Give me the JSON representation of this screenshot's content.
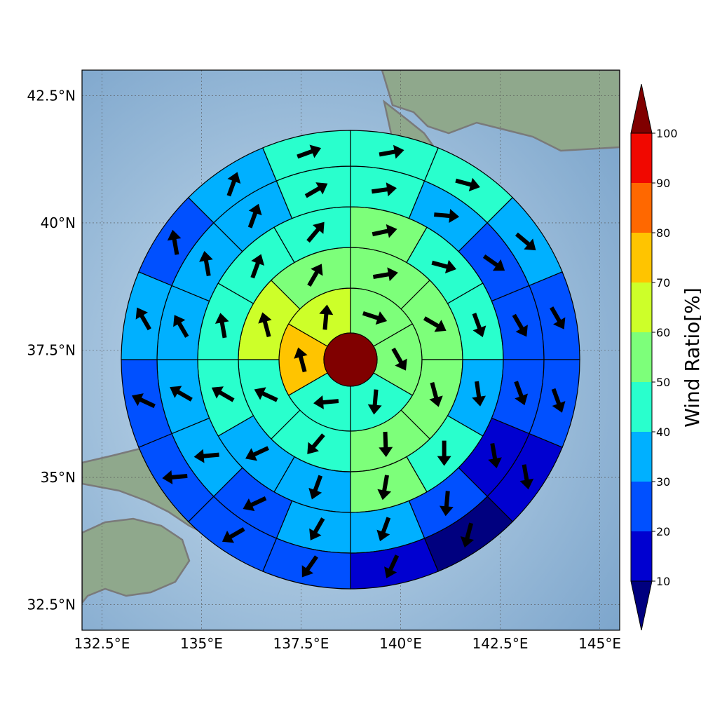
{
  "map": {
    "lon_ticks": [
      "132.5°E",
      "135°E",
      "137.5°E",
      "140°E",
      "142.5°E",
      "145°E"
    ],
    "lat_ticks": [
      "42.5°N",
      "40°N",
      "37.5°N",
      "35°N",
      "32.5°N"
    ],
    "lon_values": [
      132.5,
      135,
      137.5,
      140,
      142.5,
      145
    ],
    "lat_values": [
      42.5,
      40,
      37.5,
      35,
      32.5
    ],
    "lon_range": [
      132.0,
      145.5
    ],
    "lat_range": [
      32.0,
      43.0
    ],
    "grid": true,
    "land_color": "#8fa88c",
    "coastline_color": "#7a7a7a",
    "center_color": "#800000"
  },
  "colorbar": {
    "title": "Wind Ratio[%]",
    "tick_labels": [
      "10",
      "20",
      "30",
      "40",
      "50",
      "60",
      "70",
      "80",
      "90",
      "100"
    ],
    "levels": [
      10,
      20,
      30,
      40,
      50,
      60,
      70,
      80,
      90,
      100
    ],
    "colors": [
      "#0000d0",
      "#0050ff",
      "#00b0ff",
      "#29ffcd",
      "#7dff7a",
      "#cdff29",
      "#ffc400",
      "#ff6800",
      "#f10800"
    ],
    "under_color": "#00007f",
    "over_color": "#800000",
    "extend": "both"
  },
  "chart_data": {
    "type": "heatmap",
    "description_units": "polar sectors, ring 1 = innermost; sector values in Wind Ratio [%]; arrows give wind direction in degrees (0 = north, clockwise, direction arrow points to)",
    "center": {
      "value": 100
    },
    "rings": [
      {
        "ring": 1,
        "sectors": [
          {
            "angle": 30,
            "value": 55,
            "arrow": 108
          },
          {
            "angle": 90,
            "value": 55,
            "arrow": 150
          },
          {
            "angle": 150,
            "value": 45,
            "arrow": 185
          },
          {
            "angle": 210,
            "value": 45,
            "arrow": 265
          },
          {
            "angle": 270,
            "value": 75,
            "arrow": 345
          },
          {
            "angle": 330,
            "value": 65,
            "arrow": 5
          }
        ]
      },
      {
        "ring": 2,
        "sectors": [
          {
            "angle": 22.5,
            "value": 55,
            "arrow": 80
          },
          {
            "angle": 67.5,
            "value": 55,
            "arrow": 120
          },
          {
            "angle": 112.5,
            "value": 55,
            "arrow": 165
          },
          {
            "angle": 157.5,
            "value": 55,
            "arrow": 178
          },
          {
            "angle": 202.5,
            "value": 45,
            "arrow": 220
          },
          {
            "angle": 247.5,
            "value": 45,
            "arrow": 295
          },
          {
            "angle": 292.5,
            "value": 65,
            "arrow": 345
          },
          {
            "angle": 337.5,
            "value": 55,
            "arrow": 30
          }
        ]
      },
      {
        "ring": 3,
        "sectors": [
          {
            "angle": 15,
            "value": 55,
            "arrow": 78
          },
          {
            "angle": 45,
            "value": 45,
            "arrow": 105
          },
          {
            "angle": 75,
            "value": 45,
            "arrow": 160
          },
          {
            "angle": 105,
            "value": 35,
            "arrow": 172
          },
          {
            "angle": 135,
            "value": 45,
            "arrow": 180
          },
          {
            "angle": 165,
            "value": 55,
            "arrow": 190
          },
          {
            "angle": 195,
            "value": 35,
            "arrow": 200
          },
          {
            "angle": 225,
            "value": 35,
            "arrow": 245
          },
          {
            "angle": 255,
            "value": 45,
            "arrow": 300
          },
          {
            "angle": 285,
            "value": 45,
            "arrow": 350
          },
          {
            "angle": 315,
            "value": 45,
            "arrow": 20
          },
          {
            "angle": 345,
            "value": 45,
            "arrow": 40
          }
        ]
      },
      {
        "ring": 4,
        "sectors": [
          {
            "angle": 11.25,
            "value": 45,
            "arrow": 82
          },
          {
            "angle": 33.75,
            "value": 35,
            "arrow": 95
          },
          {
            "angle": 56.25,
            "value": 25,
            "arrow": 125
          },
          {
            "angle": 78.75,
            "value": 25,
            "arrow": 150
          },
          {
            "angle": 101.25,
            "value": 25,
            "arrow": 160
          },
          {
            "angle": 123.75,
            "value": 15,
            "arrow": 170
          },
          {
            "angle": 146.25,
            "value": 25,
            "arrow": 185
          },
          {
            "angle": 168.75,
            "value": 35,
            "arrow": 200
          },
          {
            "angle": 191.25,
            "value": 35,
            "arrow": 210
          },
          {
            "angle": 213.75,
            "value": 25,
            "arrow": 245
          },
          {
            "angle": 236.25,
            "value": 35,
            "arrow": 265
          },
          {
            "angle": 258.75,
            "value": 35,
            "arrow": 300
          },
          {
            "angle": 281.25,
            "value": 35,
            "arrow": 330
          },
          {
            "angle": 303.75,
            "value": 35,
            "arrow": 350
          },
          {
            "angle": 326.25,
            "value": 35,
            "arrow": 20
          },
          {
            "angle": 348.75,
            "value": 45,
            "arrow": 60
          }
        ]
      },
      {
        "ring": 5,
        "sectors": [
          {
            "angle": 11.25,
            "value": 45,
            "arrow": 80
          },
          {
            "angle": 33.75,
            "value": 45,
            "arrow": 105
          },
          {
            "angle": 56.25,
            "value": 35,
            "arrow": 130
          },
          {
            "angle": 78.75,
            "value": 25,
            "arrow": 150
          },
          {
            "angle": 101.25,
            "value": 25,
            "arrow": 160
          },
          {
            "angle": 123.75,
            "value": 15,
            "arrow": 170
          },
          {
            "angle": 146.25,
            "value": 5,
            "arrow": 195
          },
          {
            "angle": 168.75,
            "value": 15,
            "arrow": 205
          },
          {
            "angle": 191.25,
            "value": 25,
            "arrow": 215
          },
          {
            "angle": 213.75,
            "value": 25,
            "arrow": 240
          },
          {
            "angle": 236.25,
            "value": 25,
            "arrow": 265
          },
          {
            "angle": 258.75,
            "value": 25,
            "arrow": 295
          },
          {
            "angle": 281.25,
            "value": 35,
            "arrow": 330
          },
          {
            "angle": 303.75,
            "value": 25,
            "arrow": 350
          },
          {
            "angle": 326.25,
            "value": 35,
            "arrow": 20
          },
          {
            "angle": 348.75,
            "value": 45,
            "arrow": 70
          }
        ]
      },
      {
        "ring": 6,
        "sectors": [
          {
            "angle": 11.25,
            "value": 45,
            "arrow": 85
          },
          {
            "angle": 33.75,
            "value": 35,
            "arrow": 110
          },
          {
            "angle": 56.25,
            "value": 25,
            "arrow": 125
          },
          {
            "angle": 78.75,
            "value": 15,
            "arrow": 135
          },
          {
            "angle": 101.25,
            "value": 15,
            "arrow": 150
          },
          {
            "angle": 123.75,
            "value": 5,
            "arrow": 165
          },
          {
            "angle": 146.25,
            "value": 5,
            "arrow": 190
          },
          {
            "angle": 168.75,
            "value": 15,
            "arrow": 200
          },
          {
            "angle": 191.25,
            "value": 15,
            "arrow": 215
          },
          {
            "angle": 213.75,
            "value": 25,
            "arrow": 240
          },
          {
            "angle": 236.25,
            "value": 25,
            "arrow": 255
          },
          {
            "angle": 258.75,
            "value": 15,
            "arrow": 290
          },
          {
            "angle": 281.25,
            "value": 25,
            "arrow": 335
          },
          {
            "angle": 303.75,
            "value": 35,
            "arrow": 345
          },
          {
            "angle": 326.25,
            "value": 35,
            "arrow": 15
          },
          {
            "angle": 348.75,
            "value": 20,
            "arrow": 45
          }
        ]
      }
    ]
  }
}
